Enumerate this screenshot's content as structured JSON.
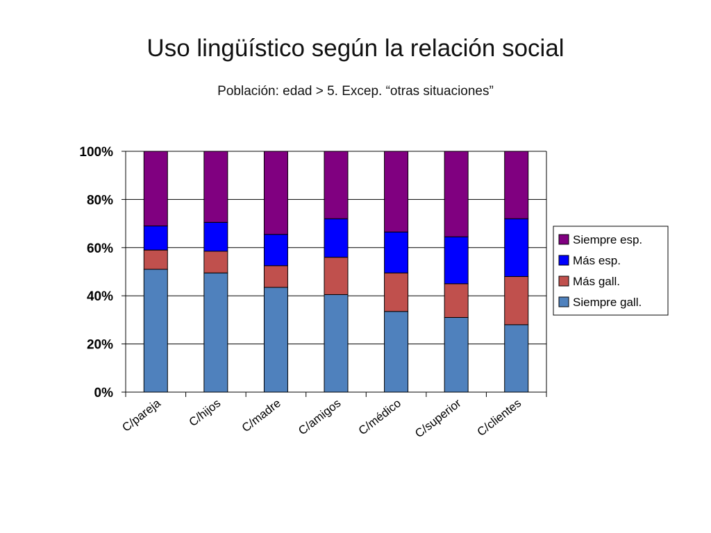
{
  "slide": {
    "title": "Uso lingüístico según la relación social",
    "subtitle": "Población: edad  > 5. Excep. “otras situaciones”"
  },
  "chart_data": {
    "type": "bar",
    "stacked": true,
    "title": "",
    "xlabel": "",
    "ylabel": "",
    "ylim": [
      0,
      100
    ],
    "y_tick_labels": [
      "0%",
      "20%",
      "40%",
      "60%",
      "80%",
      "100%"
    ],
    "grid": true,
    "legend_position": "right",
    "categories": [
      "C/pareja",
      "C/hijos",
      "C/madre",
      "C/amigos",
      "C/médico",
      "C/superior",
      "C/clientes"
    ],
    "series": [
      {
        "name": "Siempre gall.",
        "color": "#4f81bd",
        "values": [
          51,
          49.5,
          43.5,
          40.5,
          33.5,
          31,
          28
        ]
      },
      {
        "name": "Más gall.",
        "color": "#c0504d",
        "values": [
          8,
          9,
          9,
          15.5,
          16,
          14,
          20
        ]
      },
      {
        "name": "Más esp.",
        "color": "#0000ff",
        "values": [
          10,
          12,
          13,
          16,
          17,
          19.5,
          24
        ]
      },
      {
        "name": "Siempre esp.",
        "color": "#800080",
        "values": [
          31,
          29.5,
          34.5,
          28,
          33.5,
          35.5,
          28
        ]
      }
    ],
    "legend_order": [
      "Siempre esp.",
      "Más esp.",
      "Más gall.",
      "Siempre gall."
    ]
  }
}
